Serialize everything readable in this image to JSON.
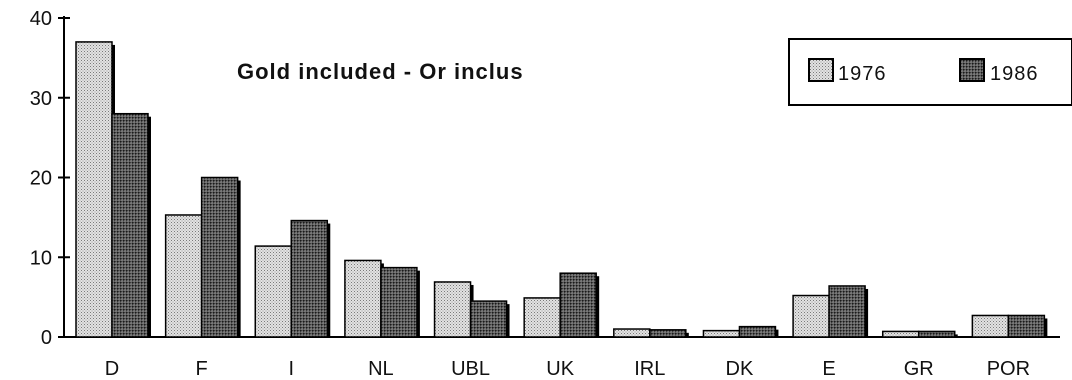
{
  "chart_data": {
    "type": "bar",
    "title": "Gold included - Or inclus",
    "categories": [
      "D",
      "F",
      "I",
      "NL",
      "UBL",
      "UK",
      "IRL",
      "DK",
      "E",
      "GR",
      "POR"
    ],
    "series": [
      {
        "name": "1976",
        "values": [
          37,
          15.3,
          11.4,
          9.6,
          6.9,
          4.9,
          1.0,
          0.8,
          5.2,
          0.7,
          2.7
        ]
      },
      {
        "name": "1986",
        "values": [
          28,
          20,
          14.6,
          8.7,
          4.5,
          8.0,
          0.9,
          1.3,
          6.4,
          0.7,
          2.7
        ]
      }
    ],
    "yticks": [
      0,
      10,
      20,
      30,
      40
    ],
    "ylim": [
      0,
      40
    ],
    "xlabel": "",
    "ylabel": "",
    "grid": false,
    "legend_position": "top-right",
    "colors": {
      "series_1976": "#c8c8c8",
      "series_1986": "#4a4a4a",
      "axis": "#000000"
    }
  }
}
